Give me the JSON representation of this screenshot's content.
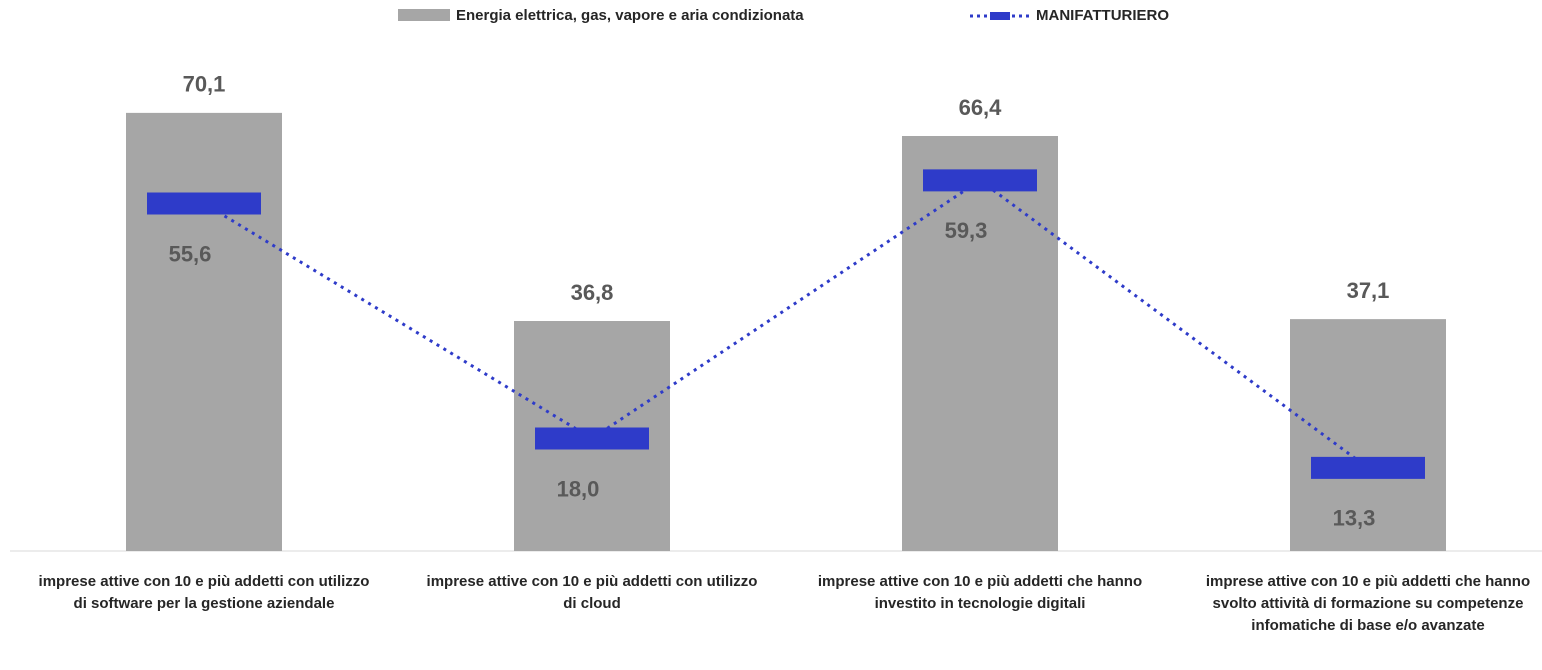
{
  "chart_data": {
    "type": "bar_line",
    "categories": [
      "imprese attive con 10 e più addetti con utilizzo di software per la gestione aziendale",
      "imprese attive con 10 e più addetti con utilizzo di cloud",
      "imprese attive con 10 e più addetti che hanno investito in tecnologie digitali",
      "imprese attive con 10 e più addetti che hanno svolto attività  di formazione su competenze infomatiche di base e/o avanzate"
    ],
    "series": [
      {
        "name": "Energia elettrica, gas, vapore e aria condizionata",
        "color": "#a6a6a6",
        "values": [
          70.1,
          36.8,
          66.4,
          37.1
        ],
        "value_labels": [
          "70,1",
          "36,8",
          "66,4",
          "37,1"
        ]
      },
      {
        "name": "MANIFATTURIERO",
        "color": "#2e3bc9",
        "values": [
          55.6,
          18.0,
          59.3,
          13.3
        ],
        "value_labels": [
          "55,6",
          "18,0",
          "59,3",
          "13,3"
        ]
      }
    ],
    "ylim": [
      0,
      80
    ],
    "legend": "top"
  }
}
